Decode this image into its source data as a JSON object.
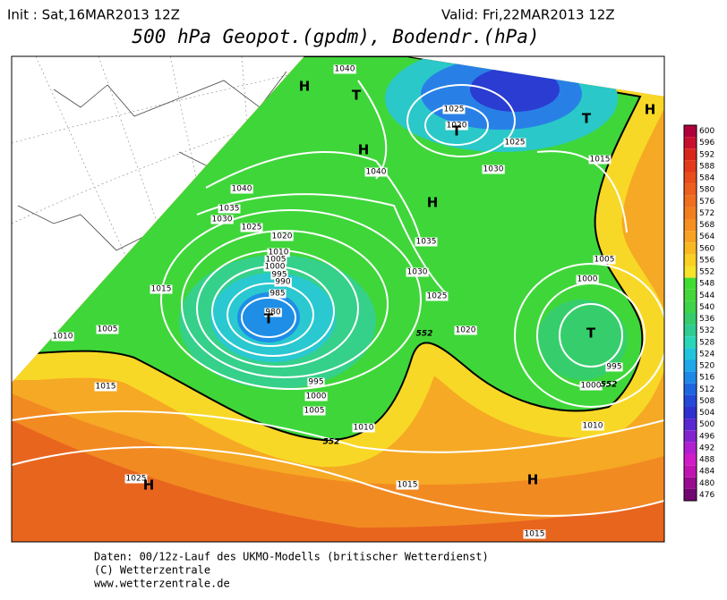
{
  "header": {
    "init": "Init : Sat,16MAR2013 12Z",
    "valid": "Valid: Fri,22MAR2013 12Z",
    "title": "500 hPa Geopot.(gpdm), Bodendr.(hPa)"
  },
  "legend": {
    "levels": [
      600,
      596,
      592,
      588,
      584,
      580,
      576,
      572,
      568,
      564,
      560,
      556,
      552,
      548,
      544,
      540,
      536,
      532,
      528,
      524,
      520,
      516,
      512,
      508,
      504,
      500,
      496,
      492,
      488,
      484,
      480,
      476
    ],
    "colors": [
      "#b0003c",
      "#c8102e",
      "#d9261c",
      "#e23a1a",
      "#e84e1c",
      "#ec5e1e",
      "#ef6e20",
      "#f27e22",
      "#f58f22",
      "#f7a222",
      "#f9b822",
      "#fad024",
      "#f7e32a",
      "#40dd30",
      "#44d63c",
      "#3fd24a",
      "#36cc6c",
      "#2ecc92",
      "#2ad6b8",
      "#22c4dc",
      "#1fa8e8",
      "#1e88e8",
      "#1e66e0",
      "#2448d8",
      "#3030d0",
      "#5a28d0",
      "#8424d0",
      "#b020d0",
      "#d01cc8",
      "#c014b0",
      "#980c90",
      "#700870"
    ]
  },
  "map": {
    "isobar_labels": [
      "1040",
      "1025",
      "1020",
      "1025",
      "1015",
      "1040",
      "1030",
      "1040",
      "1035",
      "1030",
      "1025",
      "1020",
      "1035",
      "1010",
      "1005",
      "1000",
      "995",
      "990",
      "985",
      "980",
      "1015",
      "1005",
      "1000",
      "1030",
      "1025",
      "1020",
      "1005",
      "1010",
      "1015",
      "995",
      "1000",
      "1005",
      "995",
      "1000",
      "1010",
      "1010",
      "1015",
      "1025",
      "1015",
      "552",
      "552",
      "552"
    ],
    "pressure_centers": [
      "H",
      "T",
      "H",
      "T",
      "T",
      "H",
      "H",
      "T",
      "T",
      "H",
      "H"
    ]
  },
  "footer": [
    "Daten: 00/12z-Lauf des UKMO-Modells (britischer Wetterdienst)",
    "(C) Wetterzentrale",
    "www.wetterzentrale.de"
  ]
}
